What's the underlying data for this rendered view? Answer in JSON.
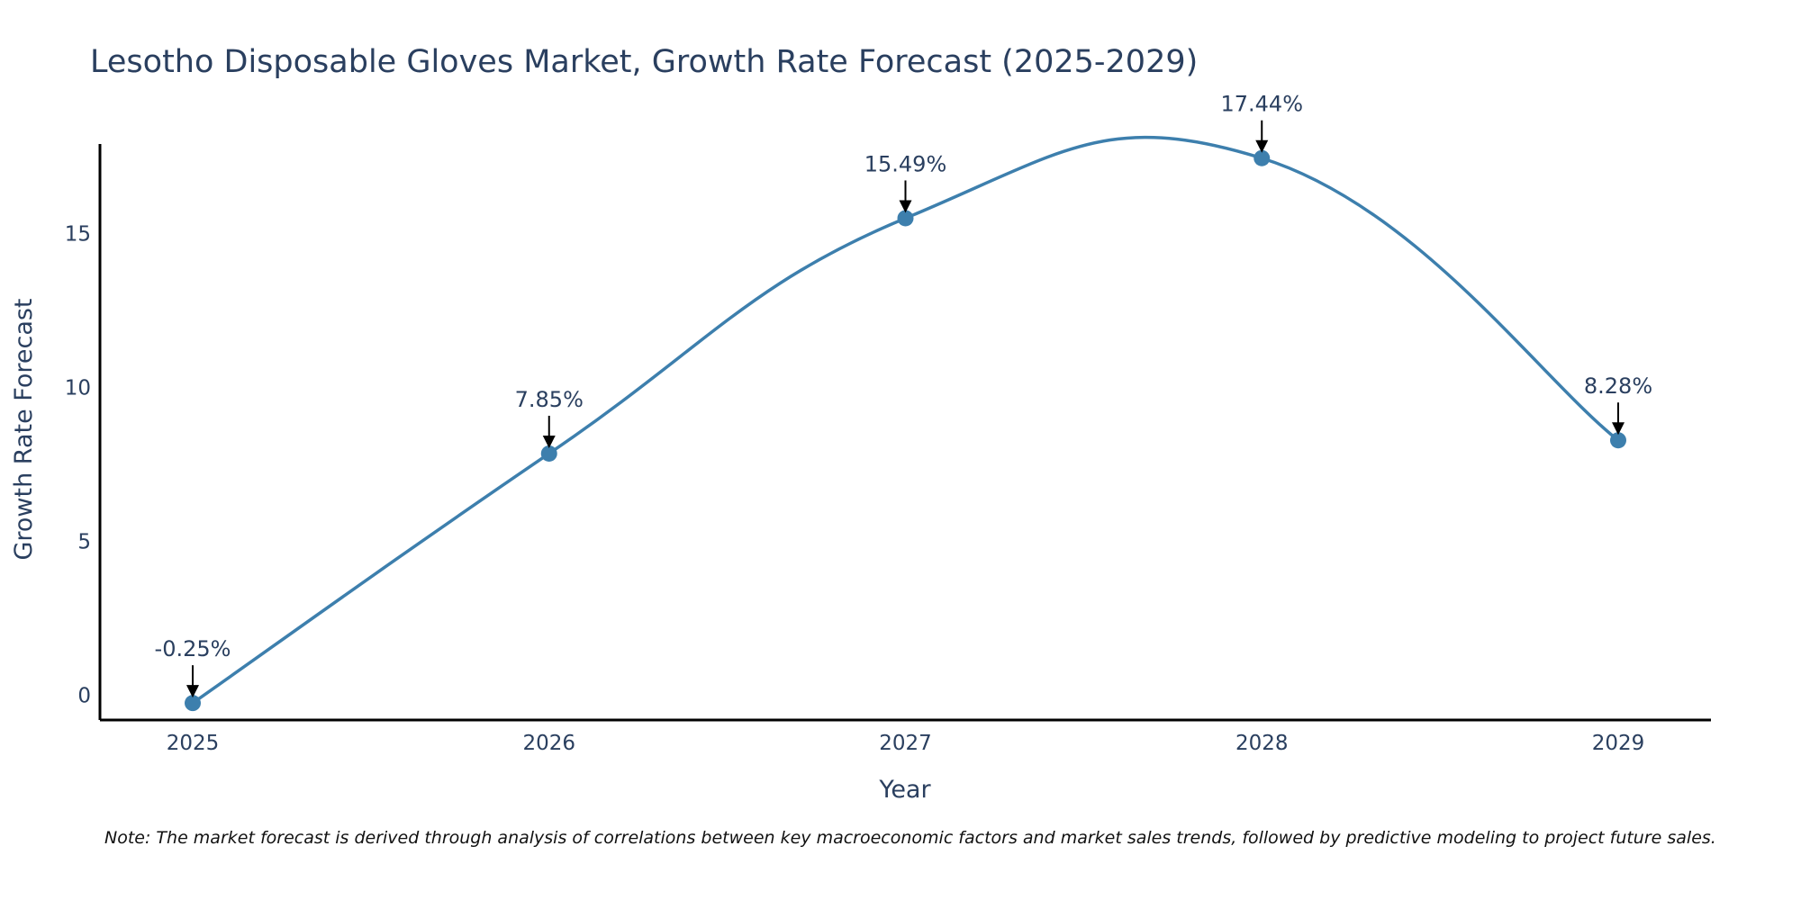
{
  "chart_data": {
    "type": "line",
    "title": "Lesotho Disposable Gloves Market, Growth Rate Forecast (2025-2029)",
    "xlabel": "Year",
    "ylabel": "Growth Rate Forecast",
    "categories": [
      "2025",
      "2026",
      "2027",
      "2028",
      "2029"
    ],
    "series": [
      {
        "name": "Growth Rate Forecast",
        "values": [
          -0.25,
          7.85,
          15.49,
          17.44,
          8.28
        ]
      }
    ],
    "annotations": [
      "-0.25%",
      "7.85%",
      "15.49%",
      "17.44%",
      "8.28%"
    ],
    "yticks": [
      0,
      5,
      10,
      15
    ],
    "ytick_labels": [
      "0",
      "5",
      "10",
      "15"
    ],
    "ylim": [
      -0.8,
      17.9
    ],
    "line_shape": "spline",
    "line_color": "#3d7fad",
    "marker_color": "#3d7fad",
    "grid": false
  },
  "note": "Note: The market forecast is derived through analysis of correlations between key macroeconomic factors and market sales trends, followed by predictive modeling to project future sales."
}
